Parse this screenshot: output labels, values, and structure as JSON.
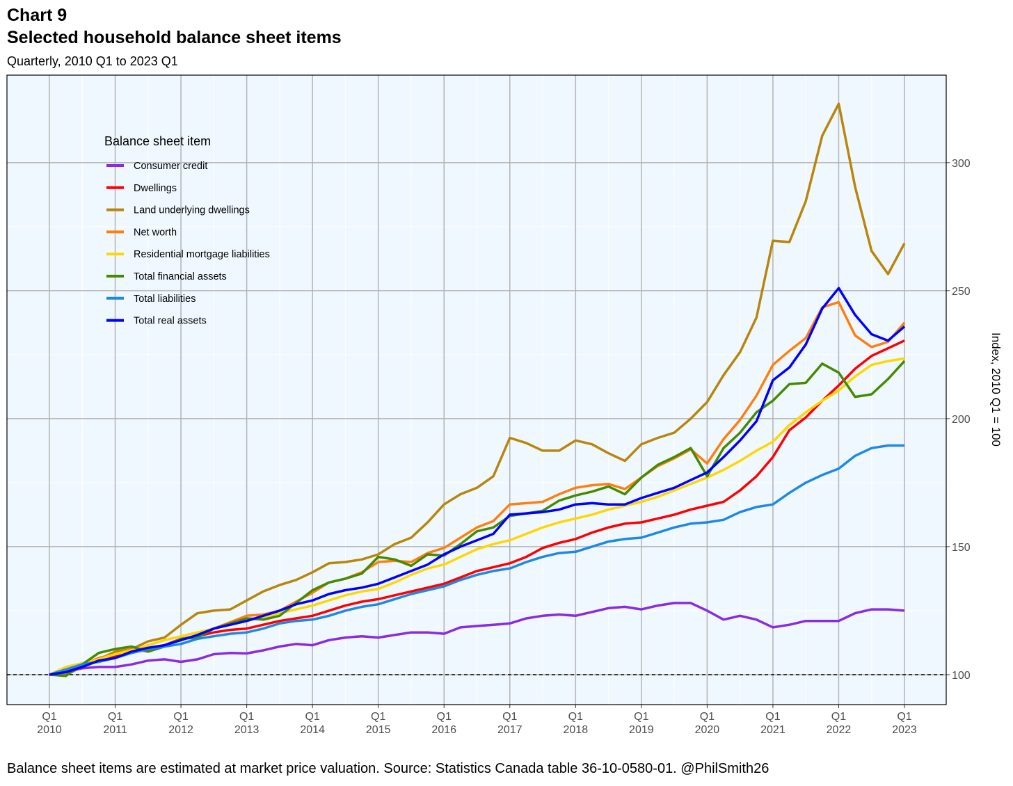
{
  "chart_data": {
    "type": "line",
    "title": "Chart 9",
    "subtitle_title": "Selected household balance sheet items",
    "subtitle": "Quarterly, 2010 Q1 to 2023 Q1",
    "caption": "Balance sheet items are estimated at market price valuation. Source: Statistics Canada table 36-10-0580-01. @PhilSmith26",
    "y_label": "Index, 2010 Q1 = 100",
    "legend_title": "Balance sheet item",
    "legend_position": "top-left",
    "grid": true,
    "hline": 100,
    "categories": [
      "Q1\n2010",
      null,
      null,
      null,
      "Q1\n2011",
      null,
      null,
      null,
      "Q1\n2012",
      null,
      null,
      null,
      "Q1\n2013",
      null,
      null,
      null,
      "Q1\n2014",
      null,
      null,
      null,
      "Q1\n2015",
      null,
      null,
      null,
      "Q1\n2016",
      null,
      null,
      null,
      "Q1\n2017",
      null,
      null,
      null,
      "Q1\n2018",
      null,
      null,
      null,
      "Q1\n2019",
      null,
      null,
      null,
      "Q1\n2020",
      null,
      null,
      null,
      "Q1\n2021",
      null,
      null,
      null,
      "Q1\n2022",
      null,
      null,
      null,
      "Q1\n2023"
    ],
    "ylim": [
      88.3,
      334.2
    ],
    "yticks": [
      100,
      150,
      200,
      250,
      300
    ],
    "series": [
      {
        "name": "Consumer credit",
        "color": "#8a2be2",
        "values": [
          100,
          101,
          102.5,
          103,
          103,
          104,
          105.5,
          106,
          105,
          106,
          108,
          108.5,
          108.3,
          109.5,
          111,
          112,
          111.5,
          113.5,
          114.5,
          115,
          114.5,
          115.5,
          116.5,
          116.5,
          116,
          118.5,
          119,
          119.5,
          120,
          122,
          123,
          123.5,
          123,
          124.5,
          126,
          126.5,
          125.5,
          127,
          128,
          128,
          125,
          121.5,
          123,
          121.5,
          118.5,
          119.5,
          121,
          121,
          121,
          124,
          125.5,
          125.5,
          125
        ]
      },
      {
        "name": "Dwellings",
        "color": "#ff0000",
        "values": [
          100,
          101.5,
          104,
          106,
          107,
          108.5,
          110,
          111.5,
          114,
          115,
          116.5,
          117.5,
          118,
          119.5,
          121,
          122,
          123,
          125,
          127,
          128.5,
          129.5,
          131,
          132.5,
          134,
          135.5,
          138,
          140.5,
          142,
          143.5,
          146,
          149.5,
          151.5,
          153,
          155.5,
          157.5,
          159,
          159.5,
          161,
          162.5,
          164.5,
          166,
          167.5,
          172,
          177.5,
          185,
          195.5,
          200.5,
          207,
          213,
          219.5,
          224.5,
          227.5,
          230.5
        ]
      },
      {
        "name": "Land underlying dwellings",
        "color": "#b8860b",
        "values": [
          100,
          100,
          103,
          106,
          109,
          110,
          113,
          114.5,
          119.5,
          124,
          125,
          125.5,
          129,
          132.5,
          135,
          137,
          140,
          143.5,
          144,
          145,
          147,
          151,
          153.5,
          159.5,
          166.5,
          170.5,
          173,
          177.5,
          192.5,
          190.5,
          187.5,
          187.5,
          191.5,
          190,
          186.5,
          183.5,
          190,
          192.5,
          194.5,
          200,
          206.5,
          217,
          226,
          239.5,
          269.5,
          269,
          285,
          310.5,
          323,
          290.5,
          265.5,
          256.5,
          268.5
        ]
      },
      {
        "name": "Net worth",
        "color": "#ff7f0e",
        "values": [
          100,
          102,
          104,
          106.5,
          108,
          110,
          109,
          111,
          114,
          115,
          118,
          120.5,
          123,
          123.5,
          125,
          128.5,
          132,
          136,
          137.5,
          140,
          144,
          144.5,
          144,
          147.5,
          149.5,
          153.5,
          157.5,
          160,
          166.5,
          167,
          167.5,
          170.5,
          173,
          174,
          174.5,
          172.5,
          177,
          181.5,
          184.5,
          188,
          182.5,
          192,
          199.5,
          209,
          221,
          226.5,
          231.5,
          243.5,
          245.5,
          232.5,
          228,
          230,
          237.5
        ]
      },
      {
        "name": "Residential mortgage liabilities",
        "color": "#ffd700",
        "values": [
          100,
          103,
          104.5,
          106,
          108,
          109.5,
          111.5,
          113.5,
          115,
          116.5,
          118,
          119.5,
          121,
          122.5,
          124,
          125.5,
          127,
          129,
          131,
          132.5,
          133.5,
          136,
          139,
          141.5,
          143,
          146,
          149,
          151,
          152.5,
          155,
          157.5,
          159.5,
          161,
          162.5,
          164.5,
          166,
          167.5,
          169.5,
          172,
          174.5,
          177,
          180,
          183.5,
          187.5,
          191,
          197.5,
          202.5,
          207,
          211,
          216.5,
          221,
          222.5,
          223.5
        ]
      },
      {
        "name": "Total financial assets",
        "color": "#458b00",
        "values": [
          100,
          99.5,
          104,
          108.5,
          110,
          111,
          109,
          111,
          114,
          114.5,
          118,
          120,
          122,
          121.5,
          123,
          128,
          133,
          136,
          137.5,
          139.5,
          146,
          145,
          142.5,
          147,
          146.5,
          151,
          156,
          157.5,
          162,
          163,
          164,
          168,
          170,
          171.5,
          173.5,
          170.5,
          177,
          182,
          185,
          188.5,
          177.5,
          188.5,
          194.5,
          202.5,
          207,
          213.5,
          214,
          221.5,
          218,
          208.5,
          209.5,
          215.5,
          222.5
        ]
      },
      {
        "name": "Total liabilities",
        "color": "#1e88e5",
        "values": [
          100,
          102,
          104,
          105,
          106.5,
          108.5,
          110,
          111,
          112,
          114,
          115,
          116,
          116.5,
          118,
          120,
          121,
          121.5,
          123,
          125,
          126.5,
          127.5,
          129.5,
          131.5,
          133,
          134.5,
          137,
          139,
          140.5,
          141.5,
          144,
          146,
          147.5,
          148,
          150,
          152,
          153,
          153.5,
          155.5,
          157.5,
          159,
          159.5,
          160.5,
          163.5,
          165.5,
          166.5,
          171,
          175,
          178,
          180.5,
          185.5,
          188.5,
          189.5,
          189.5
        ]
      },
      {
        "name": "Total real assets",
        "color": "#0000ff",
        "values": [
          100,
          101,
          103,
          105.5,
          106.5,
          109,
          110.5,
          111.5,
          113.5,
          115.5,
          118,
          119.5,
          121,
          123,
          125,
          127.5,
          129,
          131.5,
          133,
          134,
          135.5,
          138,
          140.5,
          143,
          147,
          150,
          152.5,
          155,
          162.5,
          163,
          163.5,
          164.5,
          166.5,
          167,
          166.5,
          166.5,
          169,
          171,
          173,
          176,
          179,
          185,
          191.5,
          199,
          215,
          220,
          229,
          243,
          251,
          240.5,
          233,
          230.5,
          236
        ]
      }
    ]
  }
}
